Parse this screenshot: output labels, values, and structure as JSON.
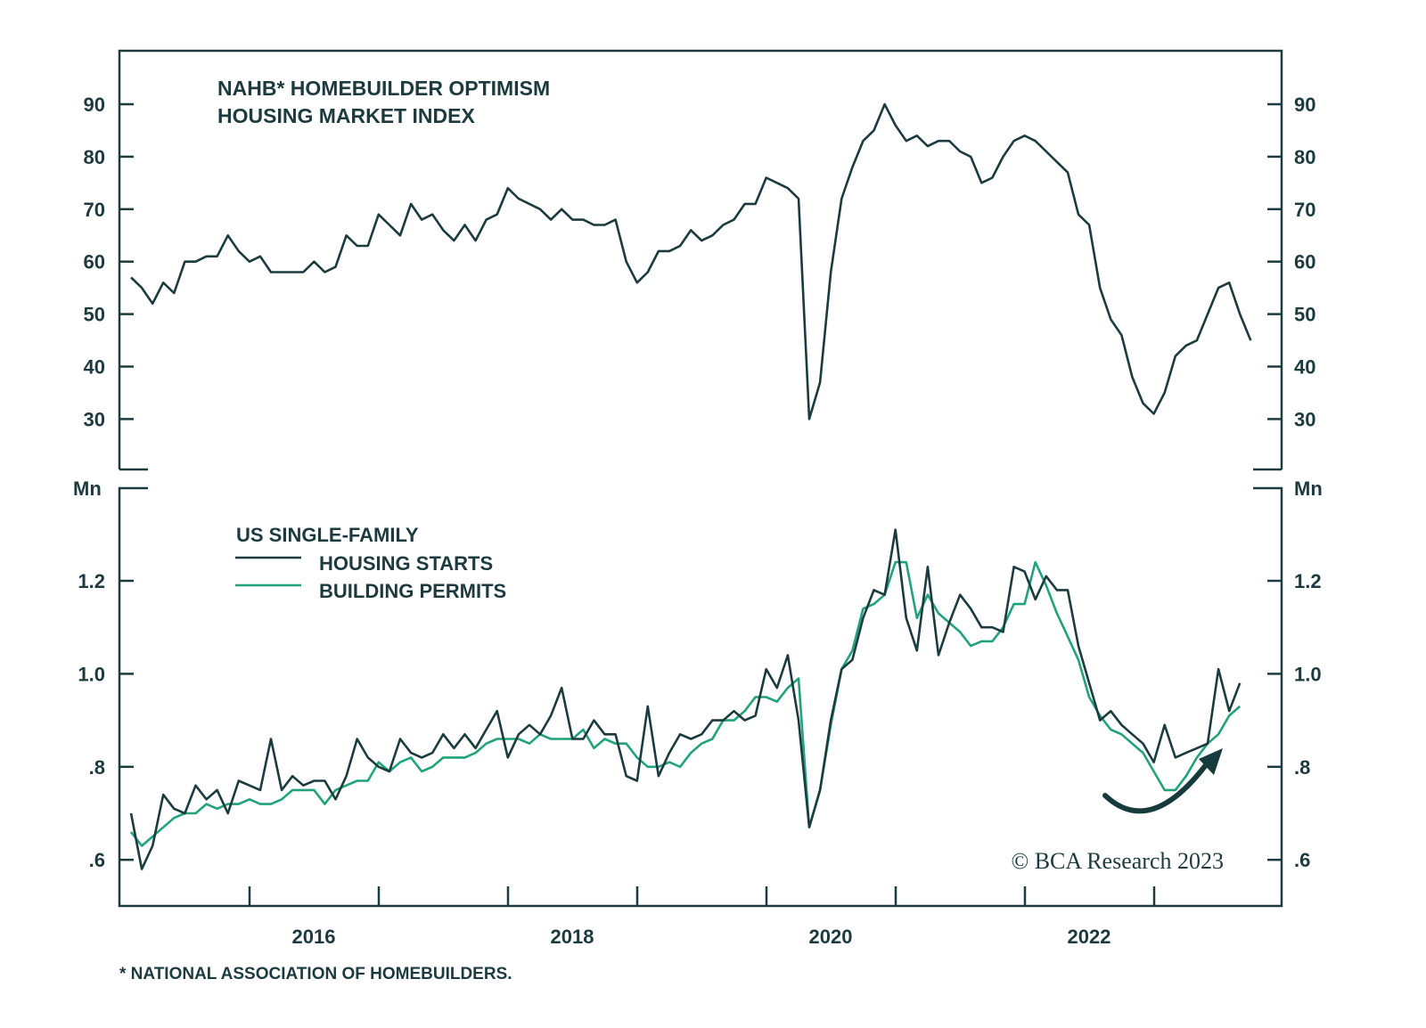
{
  "colors": {
    "dark": "#1b3b3e",
    "green": "#22a27b",
    "text": "#1d3b3f"
  },
  "footnote": "* NATIONAL ASSOCIATION OF HOMEBUILDERS.",
  "copyright": "© BCA Research 2023",
  "chart_data": [
    {
      "type": "line",
      "title": "NAHB* HOMEBUILDER OPTIMISM HOUSING MARKET INDEX",
      "title_lines": [
        "NAHB* HOMEBUILDER OPTIMISM",
        "HOUSING MARKET INDEX"
      ],
      "x_start": "2015-01",
      "x_frequency": "monthly",
      "x_tick_labels": [
        "2016",
        "2018",
        "2020",
        "2022"
      ],
      "ylim": [
        20,
        100
      ],
      "y_ticks": [
        30,
        40,
        50,
        60,
        70,
        80,
        90
      ],
      "y_axes": "left and right",
      "grid": false,
      "series": [
        {
          "color": "#1b3b3e",
          "values": [
            57,
            55,
            52,
            56,
            54,
            60,
            60,
            61,
            61,
            65,
            62,
            60,
            61,
            58,
            58,
            58,
            58,
            60,
            58,
            59,
            65,
            63,
            63,
            69,
            67,
            65,
            71,
            68,
            69,
            66,
            64,
            67,
            64,
            68,
            69,
            74,
            72,
            71,
            70,
            68,
            70,
            68,
            68,
            67,
            67,
            68,
            60,
            56,
            58,
            62,
            62,
            63,
            66,
            64,
            65,
            67,
            68,
            71,
            71,
            76,
            75,
            74,
            72,
            30,
            37,
            58,
            72,
            78,
            83,
            85,
            90,
            86,
            83,
            84,
            82,
            83,
            83,
            81,
            80,
            75,
            76,
            80,
            83,
            84,
            83,
            81,
            79,
            77,
            69,
            67,
            55,
            49,
            46,
            38,
            33,
            31,
            35,
            42,
            44,
            45,
            50,
            55,
            56,
            50,
            45
          ]
        }
      ]
    },
    {
      "type": "line",
      "title": "US SINGLE-FAMILY",
      "ylabel": "Mn",
      "x_start": "2015-01",
      "x_frequency": "monthly",
      "x_tick_labels": [
        "2016",
        "2018",
        "2020",
        "2022"
      ],
      "ylim": [
        0.5,
        1.4
      ],
      "y_ticks": [
        0.6,
        0.8,
        1.0,
        1.2
      ],
      "y_tick_labels": [
        ".6",
        ".8",
        "1.0",
        "1.2"
      ],
      "y_axes": "left and right",
      "grid": false,
      "legend": "top-left",
      "annotation": "curved upward arrow near 2023 trough",
      "series": [
        {
          "name": "HOUSING STARTS",
          "color": "#1b3b3e",
          "values": [
            0.7,
            0.58,
            0.63,
            0.74,
            0.71,
            0.7,
            0.76,
            0.73,
            0.75,
            0.7,
            0.77,
            0.76,
            0.75,
            0.86,
            0.75,
            0.78,
            0.76,
            0.77,
            0.77,
            0.73,
            0.78,
            0.86,
            0.82,
            0.8,
            0.79,
            0.86,
            0.83,
            0.82,
            0.83,
            0.87,
            0.84,
            0.87,
            0.84,
            0.88,
            0.92,
            0.82,
            0.87,
            0.89,
            0.87,
            0.91,
            0.97,
            0.86,
            0.86,
            0.9,
            0.87,
            0.87,
            0.78,
            0.77,
            0.93,
            0.78,
            0.83,
            0.87,
            0.86,
            0.87,
            0.9,
            0.9,
            0.92,
            0.9,
            0.91,
            1.01,
            0.97,
            1.04,
            0.9,
            0.67,
            0.75,
            0.9,
            1.01,
            1.03,
            1.12,
            1.18,
            1.17,
            1.31,
            1.12,
            1.05,
            1.23,
            1.04,
            1.11,
            1.17,
            1.14,
            1.1,
            1.1,
            1.09,
            1.23,
            1.22,
            1.16,
            1.21,
            1.18,
            1.18,
            1.06,
            0.98,
            0.9,
            0.92,
            0.89,
            0.87,
            0.85,
            0.81,
            0.89,
            0.82,
            0.83,
            0.84,
            0.85,
            1.01,
            0.92,
            0.98
          ]
        },
        {
          "name": "BUILDING PERMITS",
          "color": "#22a27b",
          "values": [
            0.66,
            0.63,
            0.65,
            0.67,
            0.69,
            0.7,
            0.7,
            0.72,
            0.71,
            0.72,
            0.72,
            0.73,
            0.72,
            0.72,
            0.73,
            0.75,
            0.75,
            0.75,
            0.72,
            0.75,
            0.76,
            0.77,
            0.77,
            0.81,
            0.79,
            0.81,
            0.82,
            0.79,
            0.8,
            0.82,
            0.82,
            0.82,
            0.83,
            0.85,
            0.86,
            0.86,
            0.86,
            0.85,
            0.87,
            0.86,
            0.86,
            0.86,
            0.88,
            0.84,
            0.86,
            0.85,
            0.85,
            0.82,
            0.8,
            0.8,
            0.81,
            0.8,
            0.83,
            0.85,
            0.86,
            0.9,
            0.9,
            0.92,
            0.95,
            0.95,
            0.94,
            0.97,
            0.99,
            0.67,
            0.75,
            0.89,
            1.01,
            1.05,
            1.14,
            1.15,
            1.17,
            1.24,
            1.24,
            1.12,
            1.17,
            1.13,
            1.11,
            1.09,
            1.06,
            1.07,
            1.07,
            1.1,
            1.15,
            1.15,
            1.24,
            1.19,
            1.13,
            1.08,
            1.03,
            0.95,
            0.91,
            0.88,
            0.87,
            0.85,
            0.83,
            0.79,
            0.75,
            0.75,
            0.78,
            0.82,
            0.85,
            0.87,
            0.91,
            0.93
          ]
        }
      ]
    }
  ]
}
